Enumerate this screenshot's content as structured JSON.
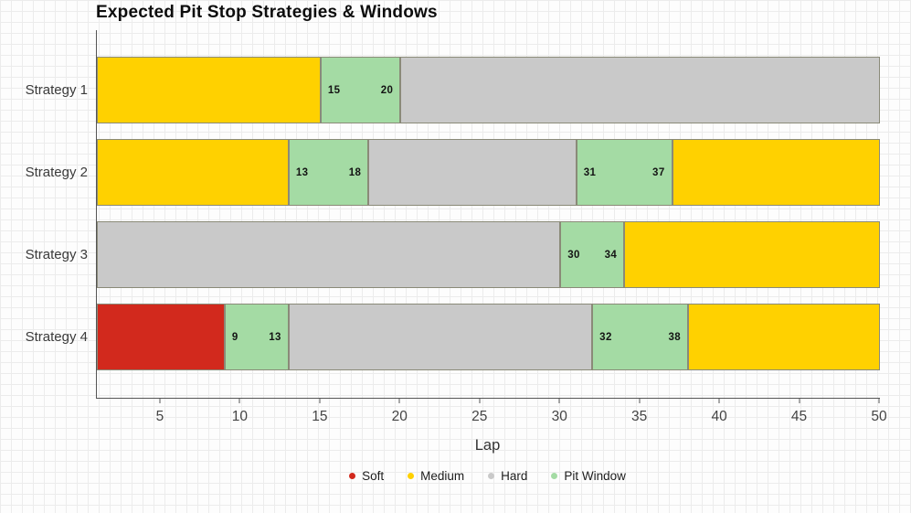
{
  "title": "Expected Pit Stop Strategies & Windows",
  "xaxis": {
    "label": "Lap"
  },
  "colors": {
    "soft": "#d2291d",
    "medium": "#ffd100",
    "hard": "#c9c9c9",
    "pit_window": "#a4dba4",
    "axis": "#555555",
    "segment_border": "#8a8a78"
  },
  "chart_data": {
    "type": "bar",
    "variant": "horizontal-stacked-timeline",
    "title": "Expected Pit Stop Strategies & Windows",
    "xlabel": "Lap",
    "xlim": [
      1,
      50
    ],
    "xticks": [
      5,
      10,
      15,
      20,
      25,
      30,
      35,
      40,
      45,
      50
    ],
    "grid": true,
    "legend_position": "bottom-center",
    "categories": [
      "Strategy 1",
      "Strategy 2",
      "Strategy 3",
      "Strategy 4"
    ],
    "compound_colors": {
      "Soft": "#d2291d",
      "Medium": "#ffd100",
      "Hard": "#c9c9c9",
      "Pit Window": "#a4dba4"
    },
    "strategies": [
      {
        "label": "Strategy 1",
        "segments": [
          {
            "compound": "Medium",
            "start": 1,
            "end": 15
          },
          {
            "compound": "Pit Window",
            "start": 15,
            "end": 20,
            "labels": [
              "15",
              "20"
            ]
          },
          {
            "compound": "Hard",
            "start": 20,
            "end": 50
          }
        ]
      },
      {
        "label": "Strategy 2",
        "segments": [
          {
            "compound": "Medium",
            "start": 1,
            "end": 13
          },
          {
            "compound": "Pit Window",
            "start": 13,
            "end": 18,
            "labels": [
              "13",
              "18"
            ]
          },
          {
            "compound": "Hard",
            "start": 18,
            "end": 31
          },
          {
            "compound": "Pit Window",
            "start": 31,
            "end": 37,
            "labels": [
              "31",
              "37"
            ]
          },
          {
            "compound": "Medium",
            "start": 37,
            "end": 50
          }
        ]
      },
      {
        "label": "Strategy 3",
        "segments": [
          {
            "compound": "Hard",
            "start": 1,
            "end": 30
          },
          {
            "compound": "Pit Window",
            "start": 30,
            "end": 34,
            "labels": [
              "30",
              "34"
            ]
          },
          {
            "compound": "Medium",
            "start": 34,
            "end": 50
          }
        ]
      },
      {
        "label": "Strategy 4",
        "segments": [
          {
            "compound": "Soft",
            "start": 1,
            "end": 9
          },
          {
            "compound": "Pit Window",
            "start": 9,
            "end": 13,
            "labels": [
              "9",
              "13"
            ]
          },
          {
            "compound": "Hard",
            "start": 13,
            "end": 32
          },
          {
            "compound": "Pit Window",
            "start": 32,
            "end": 38,
            "labels": [
              "32",
              "38"
            ]
          },
          {
            "compound": "Medium",
            "start": 38,
            "end": 50
          }
        ]
      }
    ],
    "legend": [
      {
        "label": "Soft",
        "color": "#d2291d"
      },
      {
        "label": "Medium",
        "color": "#ffd100"
      },
      {
        "label": "Hard",
        "color": "#c9c9c9"
      },
      {
        "label": "Pit Window",
        "color": "#a4dba4"
      }
    ]
  }
}
